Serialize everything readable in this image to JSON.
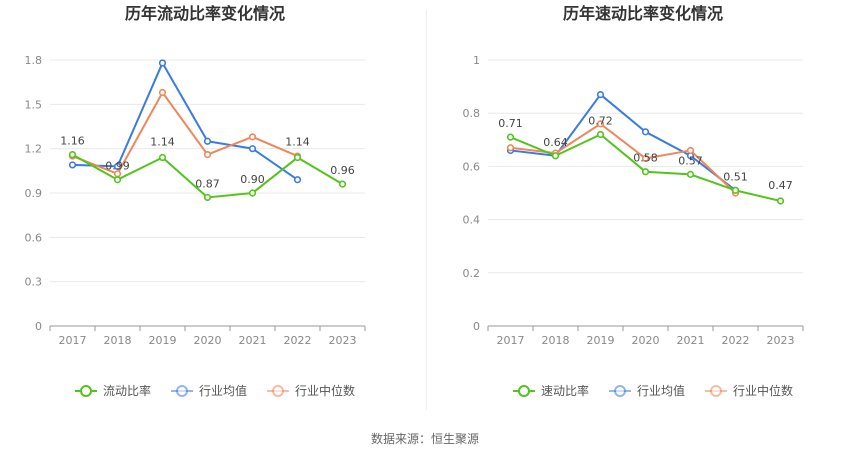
{
  "chart_data": [
    {
      "type": "line",
      "title": "历年流动比率变化情况",
      "categories": [
        "2017",
        "2018",
        "2019",
        "2020",
        "2021",
        "2022",
        "2023"
      ],
      "ylim": [
        0,
        1.8
      ],
      "yticks": [
        0,
        0.3,
        0.6,
        0.9,
        1.2,
        1.5,
        1.8
      ],
      "ytick_labels": [
        "0",
        "0.3",
        "0.6",
        "0.9",
        "1.2",
        "1.5",
        "1.8"
      ],
      "grid": true,
      "legend": "bottom",
      "series": [
        {
          "name": "流动比率",
          "color": "#52c41a",
          "values": [
            1.16,
            0.99,
            1.14,
            0.87,
            0.9,
            1.14,
            0.96
          ],
          "labels": [
            "1.16",
            "0.99",
            "1.14",
            "0.87",
            "0.90",
            "1.14",
            "0.96"
          ]
        },
        {
          "name": "行业均值",
          "color": "#3a7be0",
          "values": [
            1.09,
            1.08,
            1.78,
            1.25,
            1.2,
            0.99,
            null
          ]
        },
        {
          "name": "行业中位数",
          "color": "#f0875a",
          "values": [
            1.15,
            1.03,
            1.58,
            1.16,
            1.28,
            1.15,
            null
          ]
        }
      ]
    },
    {
      "type": "line",
      "title": "历年速动比率变化情况",
      "categories": [
        "2017",
        "2018",
        "2019",
        "2020",
        "2021",
        "2022",
        "2023"
      ],
      "ylim": [
        0,
        1
      ],
      "yticks": [
        0,
        0.2,
        0.4,
        0.6,
        0.8,
        1
      ],
      "ytick_labels": [
        "0",
        "0.2",
        "0.4",
        "0.6",
        "0.8",
        "1"
      ],
      "grid": true,
      "legend": "bottom",
      "series": [
        {
          "name": "速动比率",
          "color": "#52c41a",
          "values": [
            0.71,
            0.64,
            0.72,
            0.58,
            0.57,
            0.51,
            0.47
          ],
          "labels": [
            "0.71",
            "0.64",
            "0.72",
            "0.58",
            "0.57",
            "0.51",
            "0.47"
          ]
        },
        {
          "name": "行业均值",
          "color": "#3a7be0",
          "values": [
            0.66,
            0.64,
            0.87,
            0.73,
            0.64,
            0.51,
            null
          ]
        },
        {
          "name": "行业中位数",
          "color": "#f0875a",
          "values": [
            0.67,
            0.65,
            0.76,
            0.63,
            0.66,
            0.5,
            null
          ]
        }
      ]
    }
  ],
  "footer": {
    "source": "数据来源：恒生聚源"
  }
}
